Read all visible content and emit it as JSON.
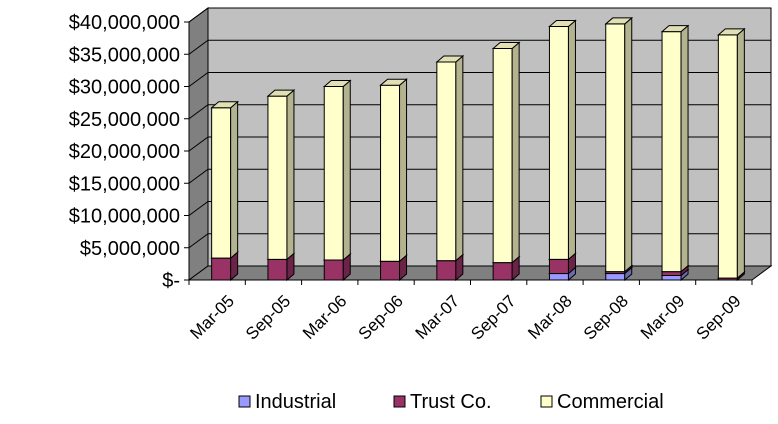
{
  "chart_data": {
    "type": "bar",
    "stacked": true,
    "three_d": true,
    "categories": [
      "Mar-05",
      "Sep-05",
      "Mar-06",
      "Sep-06",
      "Mar-07",
      "Sep-07",
      "Mar-08",
      "Sep-08",
      "Mar-09",
      "Sep-09"
    ],
    "series": [
      {
        "name": "Industrial",
        "color": "#9999FF",
        "values": [
          0,
          0,
          0,
          0,
          0,
          0,
          1000000,
          1000000,
          700000,
          0
        ]
      },
      {
        "name": "Trust Co.",
        "color": "#993366",
        "values": [
          3400000,
          3200000,
          3100000,
          2900000,
          3000000,
          2700000,
          2200000,
          300000,
          600000,
          300000
        ]
      },
      {
        "name": "Commercial",
        "color": "#FFFFCC",
        "values": [
          23300000,
          25300000,
          26900000,
          27300000,
          30800000,
          33200000,
          36100000,
          38400000,
          37200000,
          37700000
        ]
      }
    ],
    "y_ticks": [
      "$-",
      "$5,000,000",
      "$10,000,000",
      "$15,000,000",
      "$20,000,000",
      "$25,000,000",
      "$30,000,000",
      "$35,000,000",
      "$40,000,000"
    ],
    "ylim": [
      0,
      40000000
    ],
    "ytick_step": 5000000,
    "grid": true,
    "legend_position": "bottom",
    "colors": {
      "wall_back": "#C0C0C0",
      "wall_side": "#808080",
      "floor": "#808080",
      "gridline": "#000000"
    }
  }
}
